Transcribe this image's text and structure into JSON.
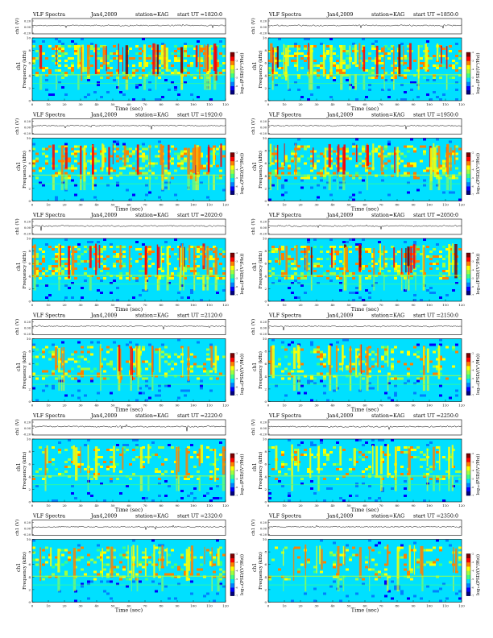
{
  "labels": {
    "product": "VLF Spectra",
    "date": "Jan4,2009",
    "station": "station=KAG",
    "start_prefix": "start  UT  =",
    "time_axis": "Time  (sec)",
    "freq_axis": "Frequency  (kHz)",
    "channel": "ch1",
    "amp_axis": "ch1 (V)",
    "colorbar_label": "log₁₀(PSD/(V²/Hz))"
  },
  "chart_data": {
    "type": "heatmap",
    "panels": [
      {
        "ut": "1820:0",
        "intensity": 0.85
      },
      {
        "ut": "1850:0",
        "intensity": 0.85
      },
      {
        "ut": "1920:0",
        "intensity": 0.8
      },
      {
        "ut": "1950:0",
        "intensity": 0.8
      },
      {
        "ut": "2020:0",
        "intensity": 0.85
      },
      {
        "ut": "2050:0",
        "intensity": 0.9
      },
      {
        "ut": "2120:0",
        "intensity": 0.6
      },
      {
        "ut": "2150:0",
        "intensity": 0.55
      },
      {
        "ut": "2220:0",
        "intensity": 0.45
      },
      {
        "ut": "2250:0",
        "intensity": 0.45
      },
      {
        "ut": "2320:0",
        "intensity": 0.5
      },
      {
        "ut": "2350:0",
        "intensity": 0.45
      }
    ],
    "time_ticks": [
      0,
      10,
      20,
      30,
      40,
      50,
      60,
      70,
      80,
      90,
      100,
      110,
      120
    ],
    "time_range": [
      0,
      120
    ],
    "freq_ticks": [
      0,
      2,
      4,
      6,
      8,
      10
    ],
    "freq_range": [
      0,
      10
    ],
    "amp_ticks": [
      "0.20",
      "0.00",
      "-0.20"
    ],
    "colorbar_ticks": [
      "-2",
      "-3",
      "-4",
      "-5",
      "-6",
      "-7"
    ],
    "colormap": [
      "#00007f",
      "#0000ff",
      "#0080ff",
      "#00e0ff",
      "#40ff80",
      "#a0ff40",
      "#ffff00",
      "#ff8000",
      "#ff0000",
      "#800000"
    ]
  }
}
